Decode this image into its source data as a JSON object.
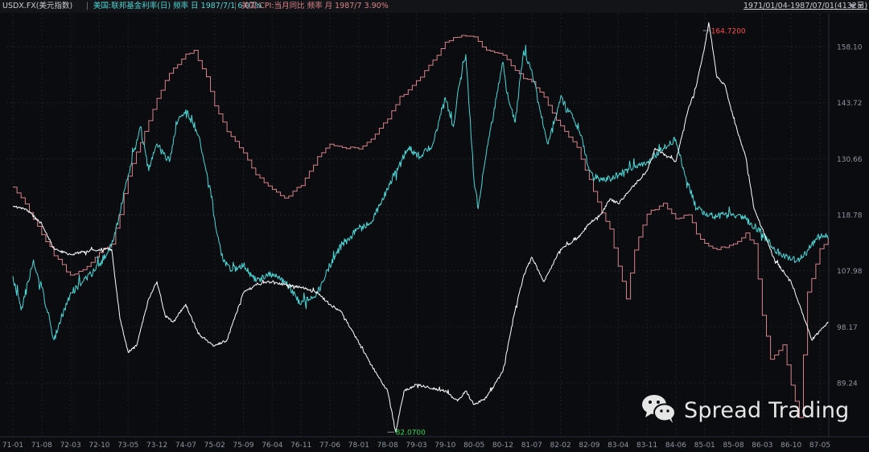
{
  "header": {
    "symbol": "USDX.FX(美元指数)",
    "sep": "|",
    "series2_label": "美国:联邦基金利率(日) 频率 日 1987/7/1 6.07%",
    "series3_label": "美国:CPI:当月同比 频率 月 1987/7 3.90%",
    "range_label": "1971/01/04-1987/07/01(4132日)",
    "range_icon": "triangle-down-icon",
    "colors": {
      "series1": "#ffffff",
      "series2": "#4fd6d6",
      "series3": "#d9838a"
    }
  },
  "watermark": {
    "icon": "wechat-icon",
    "text": "Spread Trading"
  },
  "chart_data": {
    "type": "line",
    "x_tick_labels": [
      "71-01",
      "71-08",
      "72-03",
      "72-10",
      "73-05",
      "73-12",
      "74-07",
      "75-02",
      "75-09",
      "76-04",
      "76-11",
      "77-06",
      "78-01",
      "78-08",
      "79-03",
      "79-10",
      "80-05",
      "80-12",
      "81-07",
      "82-02",
      "82-09",
      "83-04",
      "83-11",
      "84-06",
      "85-01",
      "85-08",
      "86-03",
      "86-10",
      "87-05"
    ],
    "y_tick_labels": [
      "158.10",
      "143.72",
      "130.66",
      "118.78",
      "107.98",
      "98.17",
      "89.24"
    ],
    "y_axis_side": "right",
    "grid": true,
    "annotations": [
      {
        "text": "164.7200",
        "x": "85-01",
        "y": 164.72,
        "color": "#ff4d4d"
      },
      {
        "text": "82.0700",
        "x": "78-08",
        "y": 82.07,
        "color": "#32d74b"
      }
    ],
    "series": [
      {
        "key": "usdx",
        "color": "#ffffff",
        "points": [
          [
            "71-01",
            120.5
          ],
          [
            "71-04",
            120
          ],
          [
            "71-08",
            117
          ],
          [
            "71-11",
            112
          ],
          [
            "72-03",
            111
          ],
          [
            "72-06",
            111.5
          ],
          [
            "72-10",
            112
          ],
          [
            "73-01",
            112
          ],
          [
            "73-03",
            99.5
          ],
          [
            "73-05",
            94
          ],
          [
            "73-07",
            95
          ],
          [
            "73-10",
            103
          ],
          [
            "73-12",
            106
          ],
          [
            "74-02",
            100
          ],
          [
            "74-04",
            99
          ],
          [
            "74-07",
            102
          ],
          [
            "74-10",
            97
          ],
          [
            "75-02",
            95
          ],
          [
            "75-05",
            96
          ],
          [
            "75-07",
            100
          ],
          [
            "75-09",
            104
          ],
          [
            "75-12",
            105.5
          ],
          [
            "76-04",
            106
          ],
          [
            "76-07",
            105.5
          ],
          [
            "76-11",
            105
          ],
          [
            "77-03",
            104
          ],
          [
            "77-06",
            102
          ],
          [
            "77-09",
            100.5
          ],
          [
            "78-01",
            95.5
          ],
          [
            "78-04",
            92
          ],
          [
            "78-06",
            90
          ],
          [
            "78-08",
            88
          ],
          [
            "78-10",
            82.07
          ],
          [
            "78-12",
            88
          ],
          [
            "79-03",
            89
          ],
          [
            "79-06",
            88.5
          ],
          [
            "79-10",
            88
          ],
          [
            "80-01",
            86.5
          ],
          [
            "80-03",
            88
          ],
          [
            "80-05",
            86
          ],
          [
            "80-08",
            87
          ],
          [
            "80-12",
            91
          ],
          [
            "81-03",
            101
          ],
          [
            "81-05",
            107
          ],
          [
            "81-07",
            110.5
          ],
          [
            "81-10",
            106
          ],
          [
            "82-02",
            112
          ],
          [
            "82-06",
            114
          ],
          [
            "82-09",
            117
          ],
          [
            "82-12",
            119
          ],
          [
            "83-02",
            122
          ],
          [
            "83-04",
            121
          ],
          [
            "83-08",
            125
          ],
          [
            "83-11",
            128
          ],
          [
            "84-01",
            133
          ],
          [
            "84-06",
            130
          ],
          [
            "84-09",
            142
          ],
          [
            "84-11",
            148
          ],
          [
            "85-01",
            158
          ],
          [
            "85-02",
            164.72
          ],
          [
            "85-04",
            150
          ],
          [
            "85-06",
            148
          ],
          [
            "85-08",
            140
          ],
          [
            "85-11",
            131
          ],
          [
            "86-01",
            120
          ],
          [
            "86-03",
            116
          ],
          [
            "86-06",
            110
          ],
          [
            "86-10",
            106
          ],
          [
            "87-01",
            100
          ],
          [
            "87-03",
            96
          ],
          [
            "87-05",
            97.5
          ],
          [
            "87-07",
            99
          ]
        ]
      },
      {
        "key": "fed_funds_rate",
        "color": "#4fd6d6",
        "points": [
          [
            "71-01",
            107
          ],
          [
            "71-03",
            101
          ],
          [
            "71-06",
            110
          ],
          [
            "71-08",
            105
          ],
          [
            "71-11",
            96
          ],
          [
            "72-01",
            100
          ],
          [
            "72-03",
            104
          ],
          [
            "72-06",
            106
          ],
          [
            "72-10",
            109
          ],
          [
            "73-01",
            113
          ],
          [
            "73-03",
            119
          ],
          [
            "73-05",
            127
          ],
          [
            "73-08",
            138
          ],
          [
            "73-10",
            128
          ],
          [
            "73-12",
            134
          ],
          [
            "74-03",
            130
          ],
          [
            "74-05",
            139
          ],
          [
            "74-07",
            142
          ],
          [
            "74-10",
            136
          ],
          [
            "75-01",
            124
          ],
          [
            "75-02",
            118
          ],
          [
            "75-04",
            110
          ],
          [
            "75-06",
            108
          ],
          [
            "75-09",
            109
          ],
          [
            "75-12",
            106
          ],
          [
            "76-04",
            107.5
          ],
          [
            "76-07",
            106
          ],
          [
            "76-11",
            102
          ],
          [
            "77-03",
            104
          ],
          [
            "77-06",
            109
          ],
          [
            "77-09",
            113
          ],
          [
            "78-01",
            116
          ],
          [
            "78-04",
            117
          ],
          [
            "78-08",
            124
          ],
          [
            "78-11",
            130
          ],
          [
            "79-01",
            133
          ],
          [
            "79-04",
            131
          ],
          [
            "79-07",
            134
          ],
          [
            "79-10",
            145
          ],
          [
            "79-12",
            138
          ],
          [
            "80-01",
            146
          ],
          [
            "80-03",
            156
          ],
          [
            "80-05",
            126
          ],
          [
            "80-06",
            120
          ],
          [
            "80-08",
            132
          ],
          [
            "80-12",
            154
          ],
          [
            "81-01",
            146
          ],
          [
            "81-03",
            139
          ],
          [
            "81-05",
            157
          ],
          [
            "81-07",
            152
          ],
          [
            "81-09",
            142
          ],
          [
            "81-11",
            134
          ],
          [
            "82-02",
            145
          ],
          [
            "82-05",
            140
          ],
          [
            "82-07",
            136
          ],
          [
            "82-09",
            128
          ],
          [
            "82-12",
            126
          ],
          [
            "83-04",
            127
          ],
          [
            "83-08",
            129
          ],
          [
            "83-11",
            130
          ],
          [
            "84-03",
            133
          ],
          [
            "84-06",
            135
          ],
          [
            "84-08",
            128
          ],
          [
            "84-11",
            120
          ],
          [
            "85-01",
            119
          ],
          [
            "85-04",
            118.5
          ],
          [
            "85-08",
            119
          ],
          [
            "85-11",
            118
          ],
          [
            "86-03",
            115
          ],
          [
            "86-06",
            112
          ],
          [
            "86-10",
            110
          ],
          [
            "87-01",
            110.5
          ],
          [
            "87-03",
            113
          ],
          [
            "87-05",
            114.5
          ],
          [
            "87-07",
            114
          ]
        ]
      },
      {
        "key": "cpi_yoy",
        "color": "#d9838a",
        "points": [
          [
            "71-01",
            124.5
          ],
          [
            "71-04",
            121
          ],
          [
            "71-08",
            115
          ],
          [
            "71-11",
            111
          ],
          [
            "72-03",
            107
          ],
          [
            "72-06",
            108
          ],
          [
            "72-10",
            111.5
          ],
          [
            "73-01",
            113
          ],
          [
            "73-03",
            119
          ],
          [
            "73-05",
            127
          ],
          [
            "73-09",
            137
          ],
          [
            "73-12",
            145
          ],
          [
            "74-03",
            151
          ],
          [
            "74-07",
            156
          ],
          [
            "74-09",
            157
          ],
          [
            "74-12",
            150
          ],
          [
            "75-02",
            143
          ],
          [
            "75-05",
            137
          ],
          [
            "75-09",
            132
          ],
          [
            "75-12",
            127
          ],
          [
            "76-04",
            124
          ],
          [
            "76-07",
            122
          ],
          [
            "76-11",
            125
          ],
          [
            "77-03",
            131
          ],
          [
            "77-06",
            134
          ],
          [
            "77-09",
            133
          ],
          [
            "78-01",
            133
          ],
          [
            "78-04",
            135
          ],
          [
            "78-08",
            140
          ],
          [
            "78-11",
            145
          ],
          [
            "79-03",
            149
          ],
          [
            "79-06",
            153
          ],
          [
            "79-10",
            159
          ],
          [
            "80-01",
            161
          ],
          [
            "80-05",
            161
          ],
          [
            "80-08",
            157
          ],
          [
            "80-12",
            156
          ],
          [
            "81-03",
            152
          ],
          [
            "81-05",
            150
          ],
          [
            "81-07",
            149
          ],
          [
            "81-10",
            145
          ],
          [
            "82-02",
            138
          ],
          [
            "82-06",
            133
          ],
          [
            "82-09",
            126
          ],
          [
            "82-12",
            119
          ],
          [
            "83-02",
            116
          ],
          [
            "83-04",
            109
          ],
          [
            "83-06",
            103
          ],
          [
            "83-08",
            112
          ],
          [
            "83-11",
            119
          ],
          [
            "84-03",
            121
          ],
          [
            "84-06",
            118
          ],
          [
            "84-09",
            119
          ],
          [
            "84-11",
            115
          ],
          [
            "85-01",
            113
          ],
          [
            "85-04",
            112
          ],
          [
            "85-08",
            113
          ],
          [
            "85-11",
            115
          ],
          [
            "86-01",
            113
          ],
          [
            "86-03",
            100
          ],
          [
            "86-05",
            93
          ],
          [
            "86-08",
            95
          ],
          [
            "86-10",
            89
          ],
          [
            "86-12",
            84
          ],
          [
            "87-02",
            104
          ],
          [
            "87-05",
            112
          ],
          [
            "87-07",
            114
          ]
        ]
      }
    ]
  }
}
